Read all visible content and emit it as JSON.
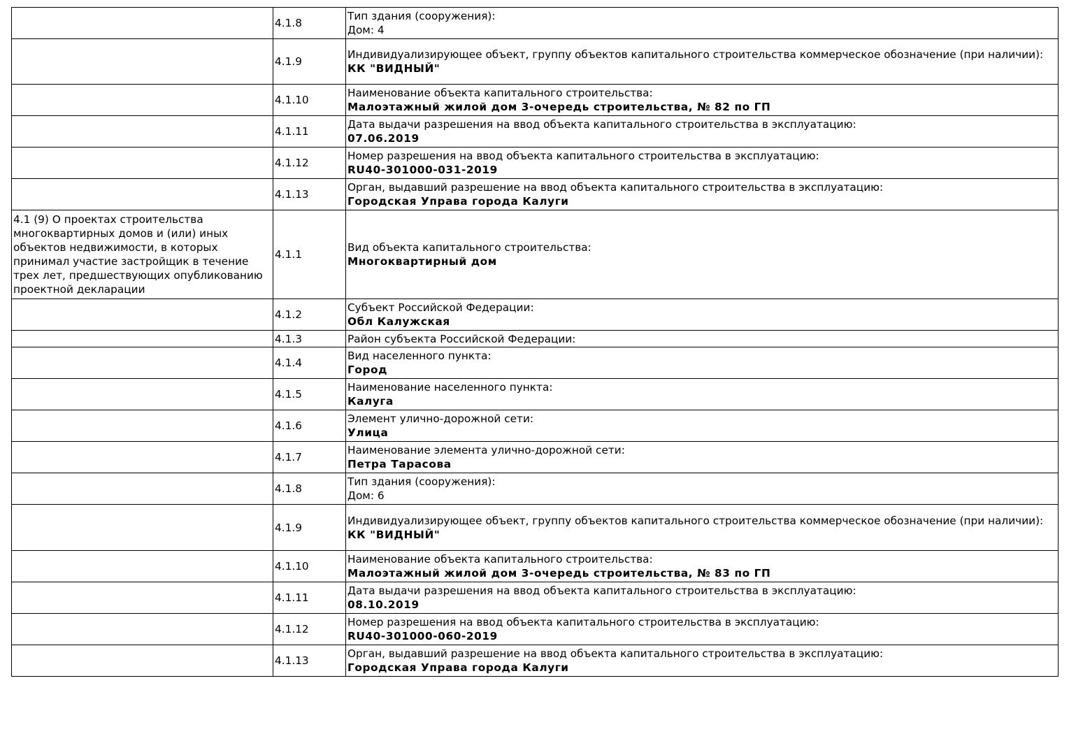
{
  "rows": [
    {
      "section": "",
      "code": "4.1.8",
      "label": "Тип здания (сооружения):",
      "value": "Дом: 4",
      "value_bold": false
    },
    {
      "section": "",
      "code": "4.1.9",
      "label": "Индивидуализирующее объект, группу объектов капитального строительства коммерческое обозначение (при наличии):",
      "value": "КК \"ВИДНЫЙ\"",
      "value_bold": true
    },
    {
      "section": "",
      "code": "4.1.10",
      "label": "Наименование объекта капитального строительства:",
      "value": "Малоэтажный жилой дом 3-очередь строительства, № 82 по ГП",
      "value_bold": true
    },
    {
      "section": "",
      "code": "4.1.11",
      "label": "Дата выдачи разрешения на ввод объекта капитального строительства в эксплуатацию:",
      "value": "07.06.2019",
      "value_bold": true
    },
    {
      "section": "",
      "code": "4.1.12",
      "label": "Номер разрешения на ввод объекта капитального строительства в эксплуатацию:",
      "value": "RU40-301000-031-2019",
      "value_bold": true
    },
    {
      "section": "",
      "code": "4.1.13",
      "label": "Орган, выдавший разрешение на ввод объекта капитального строительства в эксплуатацию:",
      "value": "Городская Управа города Калуги",
      "value_bold": true
    },
    {
      "section": "4.1 (9) О проектах строительства многоквартирных домов и (или) иных объектов недвижимости, в которых принимал участие застройщик в течение трех лет, предшествующих опубликованию проектной декларации",
      "code": "4.1.1",
      "label": "Вид объекта капитального строительства:",
      "value": "Многоквартирный дом",
      "value_bold": true
    },
    {
      "section": "",
      "code": "4.1.2",
      "label": "Субъект Российской Федерации:",
      "value": "Обл Калужская",
      "value_bold": true
    },
    {
      "section": "",
      "code": "4.1.3",
      "label": "Район субъекта Российской Федерации:",
      "value": "",
      "value_bold": true
    },
    {
      "section": "",
      "code": "4.1.4",
      "label": "Вид населенного пункта:",
      "value": "Город",
      "value_bold": true
    },
    {
      "section": "",
      "code": "4.1.5",
      "label": "Наименование населенного пункта:",
      "value": "Калуга",
      "value_bold": true
    },
    {
      "section": "",
      "code": "4.1.6",
      "label": "Элемент улично-дорожной сети:",
      "value": "Улица",
      "value_bold": true
    },
    {
      "section": "",
      "code": "4.1.7",
      "label": "Наименование элемента улично-дорожной сети:",
      "value": "Петра Тарасова",
      "value_bold": true
    },
    {
      "section": "",
      "code": "4.1.8",
      "label": "Тип здания (сооружения):",
      "value": "Дом: 6",
      "value_bold": false
    },
    {
      "section": "",
      "code": "4.1.9",
      "label": "Индивидуализирующее объект, группу объектов капитального строительства коммерческое обозначение (при наличии):",
      "value": "КК \"ВИДНЫЙ\"",
      "value_bold": true
    },
    {
      "section": "",
      "code": "4.1.10",
      "label": "Наименование объекта капитального строительства:",
      "value": "Малоэтажный жилой дом 3-очередь строительства, № 83 по ГП",
      "value_bold": true
    },
    {
      "section": "",
      "code": "4.1.11",
      "label": "Дата выдачи разрешения на ввод объекта капитального строительства в эксплуатацию:",
      "value": "08.10.2019",
      "value_bold": true
    },
    {
      "section": "",
      "code": "4.1.12",
      "label": "Номер разрешения на ввод объекта капитального строительства в эксплуатацию:",
      "value": "RU40-301000-060-2019",
      "value_bold": true
    },
    {
      "section": "",
      "code": "4.1.13",
      "label": "Орган, выдавший разрешение на ввод объекта капитального строительства в эксплуатацию:",
      "value": "Городская Управа города Калуги",
      "value_bold": true
    }
  ]
}
